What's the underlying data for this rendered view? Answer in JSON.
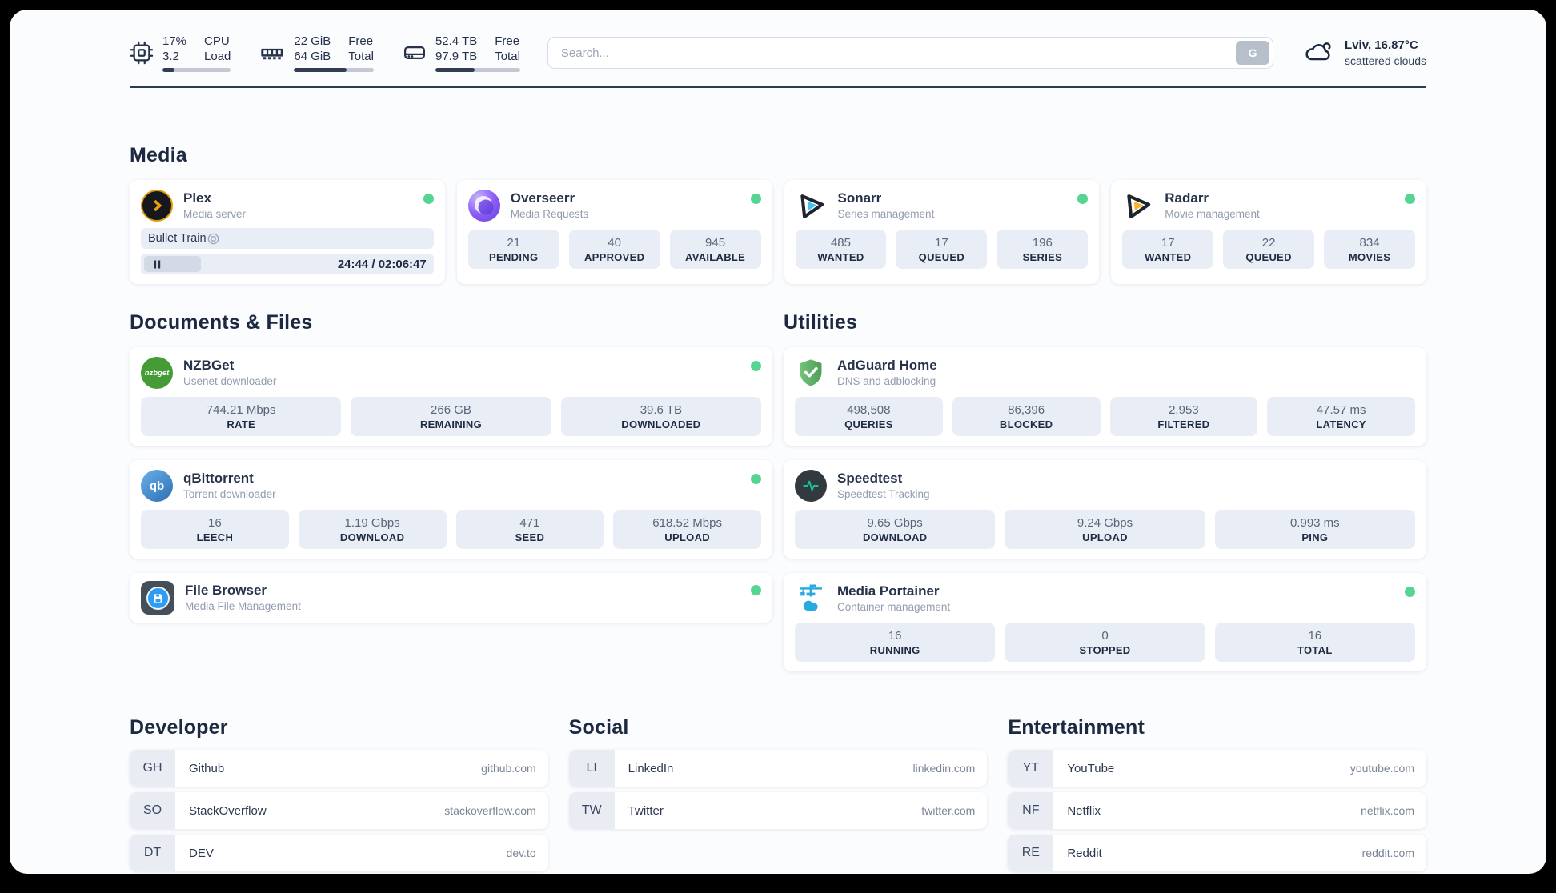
{
  "top_bar": {
    "resources": [
      {
        "id": "cpu",
        "icon": "cpu-icon",
        "value1": "17%",
        "value2": "3.2",
        "label1": "CPU",
        "label2": "Load",
        "progress_percent": 17
      },
      {
        "id": "memory",
        "icon": "memory-icon",
        "value1": "22 GiB",
        "value2": "64 GiB",
        "label1": "Free",
        "label2": "Total",
        "progress_percent": 66
      },
      {
        "id": "disk",
        "icon": "disk-icon",
        "value1": "52.4 TB",
        "value2": "97.9 TB",
        "label1": "Free",
        "label2": "Total",
        "progress_percent": 46
      }
    ],
    "search": {
      "placeholder": "Search...",
      "button_label": "G"
    },
    "weather": {
      "summary": "Lviv, 16.87°C",
      "detail": "scattered clouds"
    }
  },
  "sections": {
    "media": {
      "title": "Media",
      "cards": [
        {
          "name": "Plex",
          "subtitle": "Media server",
          "status": "online",
          "player": {
            "title": "Bullet Train",
            "time": "24:44 / 02:06:47",
            "progress_percent": 20
          }
        },
        {
          "name": "Overseerr",
          "subtitle": "Media Requests",
          "status": "online",
          "stats": [
            {
              "value": "21",
              "label": "PENDING"
            },
            {
              "value": "40",
              "label": "APPROVED"
            },
            {
              "value": "945",
              "label": "AVAILABLE"
            }
          ]
        },
        {
          "name": "Sonarr",
          "subtitle": "Series management",
          "status": "online",
          "stats": [
            {
              "value": "485",
              "label": "WANTED"
            },
            {
              "value": "17",
              "label": "QUEUED"
            },
            {
              "value": "196",
              "label": "SERIES"
            }
          ]
        },
        {
          "name": "Radarr",
          "subtitle": "Movie management",
          "status": "online",
          "stats": [
            {
              "value": "17",
              "label": "WANTED"
            },
            {
              "value": "22",
              "label": "QUEUED"
            },
            {
              "value": "834",
              "label": "MOVIES"
            }
          ]
        }
      ]
    },
    "documents": {
      "title": "Documents & Files",
      "cards": [
        {
          "name": "NZBGet",
          "subtitle": "Usenet downloader",
          "status": "online",
          "logo_text": "nzbget",
          "stats": [
            {
              "value": "744.21 Mbps",
              "label": "RATE"
            },
            {
              "value": "266 GB",
              "label": "REMAINING"
            },
            {
              "value": "39.6 TB",
              "label": "DOWNLOADED"
            }
          ]
        },
        {
          "name": "qBittorrent",
          "subtitle": "Torrent downloader",
          "status": "online",
          "logo_text": "qb",
          "stats": [
            {
              "value": "16",
              "label": "LEECH"
            },
            {
              "value": "1.19 Gbps",
              "label": "DOWNLOAD"
            },
            {
              "value": "471",
              "label": "SEED"
            },
            {
              "value": "618.52 Mbps",
              "label": "UPLOAD"
            }
          ]
        },
        {
          "name": "File Browser",
          "subtitle": "Media File Management",
          "status": "online",
          "stats": []
        }
      ]
    },
    "utilities": {
      "title": "Utilities",
      "cards": [
        {
          "name": "AdGuard Home",
          "subtitle": "DNS and adblocking",
          "stats": [
            {
              "value": "498,508",
              "label": "QUERIES"
            },
            {
              "value": "86,396",
              "label": "BLOCKED"
            },
            {
              "value": "2,953",
              "label": "FILTERED"
            },
            {
              "value": "47.57 ms",
              "label": "LATENCY"
            }
          ]
        },
        {
          "name": "Speedtest",
          "subtitle": "Speedtest Tracking",
          "stats": [
            {
              "value": "9.65 Gbps",
              "label": "DOWNLOAD"
            },
            {
              "value": "9.24 Gbps",
              "label": "UPLOAD"
            },
            {
              "value": "0.993 ms",
              "label": "PING"
            }
          ]
        },
        {
          "name": "Media Portainer",
          "subtitle": "Container management",
          "status": "online",
          "stats": [
            {
              "value": "16",
              "label": "RUNNING"
            },
            {
              "value": "0",
              "label": "STOPPED"
            },
            {
              "value": "16",
              "label": "TOTAL"
            }
          ]
        }
      ]
    },
    "bookmarks": [
      {
        "title": "Developer",
        "items": [
          {
            "abbr": "GH",
            "name": "Github",
            "url": "github.com"
          },
          {
            "abbr": "SO",
            "name": "StackOverflow",
            "url": "stackoverflow.com"
          },
          {
            "abbr": "DT",
            "name": "DEV",
            "url": "dev.to"
          }
        ]
      },
      {
        "title": "Social",
        "items": [
          {
            "abbr": "LI",
            "name": "LinkedIn",
            "url": "linkedin.com"
          },
          {
            "abbr": "TW",
            "name": "Twitter",
            "url": "twitter.com"
          }
        ]
      },
      {
        "title": "Entertainment",
        "items": [
          {
            "abbr": "YT",
            "name": "YouTube",
            "url": "youtube.com"
          },
          {
            "abbr": "NF",
            "name": "Netflix",
            "url": "netflix.com"
          },
          {
            "abbr": "RE",
            "name": "Reddit",
            "url": "reddit.com"
          }
        ]
      }
    ]
  },
  "colors": {
    "status_online_green": "#56d492",
    "text_primary": "#25324a",
    "divider_navy": "#2e3a50",
    "stat_box_bg": "#e9edf5",
    "plex_amber": "#e5a00d",
    "sonarr_cyan": "#3cc5f1",
    "radarr_amber": "#f7b32b",
    "adguard_green": "#5fae68",
    "portainer_blue": "#27aae1",
    "qbittorrent_blue": "#3a7dc4",
    "nzbget_green": "#459b35"
  }
}
